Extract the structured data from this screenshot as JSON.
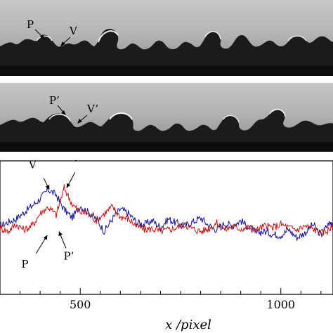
{
  "frame1": {
    "p_label": "P",
    "v_label": "V"
  },
  "frame2": {
    "p_label": "P’",
    "v_label": "V’"
  },
  "chart_data": {
    "type": "line",
    "xlabel": "x /pixel",
    "xlim": [
      300,
      1130
    ],
    "ylim": [
      -1,
      1
    ],
    "xticks": [
      500,
      1000
    ],
    "xtick_labels": [
      "500",
      "1000"
    ],
    "series": [
      {
        "color": "#1010a0",
        "x": [
          300,
          320,
          340,
          360,
          380,
          400,
          420,
          440,
          460,
          480,
          500,
          520,
          540,
          560,
          580,
          600,
          620,
          640,
          660,
          680,
          700,
          720,
          740,
          760,
          780,
          800,
          820,
          840,
          860,
          880,
          900,
          920,
          940,
          960,
          980,
          1000,
          1020,
          1040,
          1060,
          1080,
          1100,
          1120,
          1130
        ],
        "y": [
          0.05,
          0.12,
          0.18,
          0.3,
          0.42,
          0.55,
          0.72,
          0.62,
          0.35,
          0.2,
          0.42,
          0.3,
          0.18,
          -0.05,
          0.18,
          0.36,
          0.28,
          0.12,
          0.08,
          0.15,
          0.02,
          0.18,
          0.1,
          0.05,
          0.12,
          0.2,
          0.06,
          -0.02,
          0.1,
          0.05,
          0.15,
          0.02,
          -0.08,
          -0.05,
          -0.1,
          -0.12,
          -0.02,
          -0.16,
          -0.08,
          0.08,
          -0.12,
          0.1,
          0.12
        ]
      },
      {
        "color": "#d01010",
        "x": [
          300,
          320,
          340,
          360,
          380,
          400,
          420,
          440,
          460,
          480,
          500,
          520,
          540,
          560,
          580,
          600,
          620,
          640,
          660,
          680,
          700,
          720,
          740,
          760,
          780,
          800,
          820,
          840,
          860,
          880,
          900,
          920,
          940,
          960,
          980,
          1000,
          1020,
          1040,
          1060,
          1080,
          1100,
          1120,
          1130
        ],
        "y": [
          0.02,
          -0.05,
          0.08,
          -0.02,
          0.05,
          0.28,
          0.4,
          0.25,
          0.75,
          0.45,
          0.3,
          0.28,
          0.15,
          0.28,
          0.4,
          0.22,
          0.18,
          0.05,
          -0.02,
          0.0,
          -0.05,
          -0.02,
          0.02,
          0.08,
          0.0,
          -0.05,
          0.0,
          0.1,
          -0.02,
          0.05,
          0.0,
          0.02,
          -0.02,
          0.05,
          0.02,
          0.08,
          0.02,
          -0.02,
          0.05,
          0.0,
          -0.08,
          -0.02,
          0.05
        ]
      }
    ],
    "annotations": [
      {
        "text": "V",
        "x": 423,
        "y": 0.72
      },
      {
        "text": "V’",
        "x": 466,
        "y": 0.75
      },
      {
        "text": "P",
        "x": 418,
        "y": -0.12
      },
      {
        "text": "P’",
        "x": 447,
        "y": -0.05
      }
    ]
  }
}
